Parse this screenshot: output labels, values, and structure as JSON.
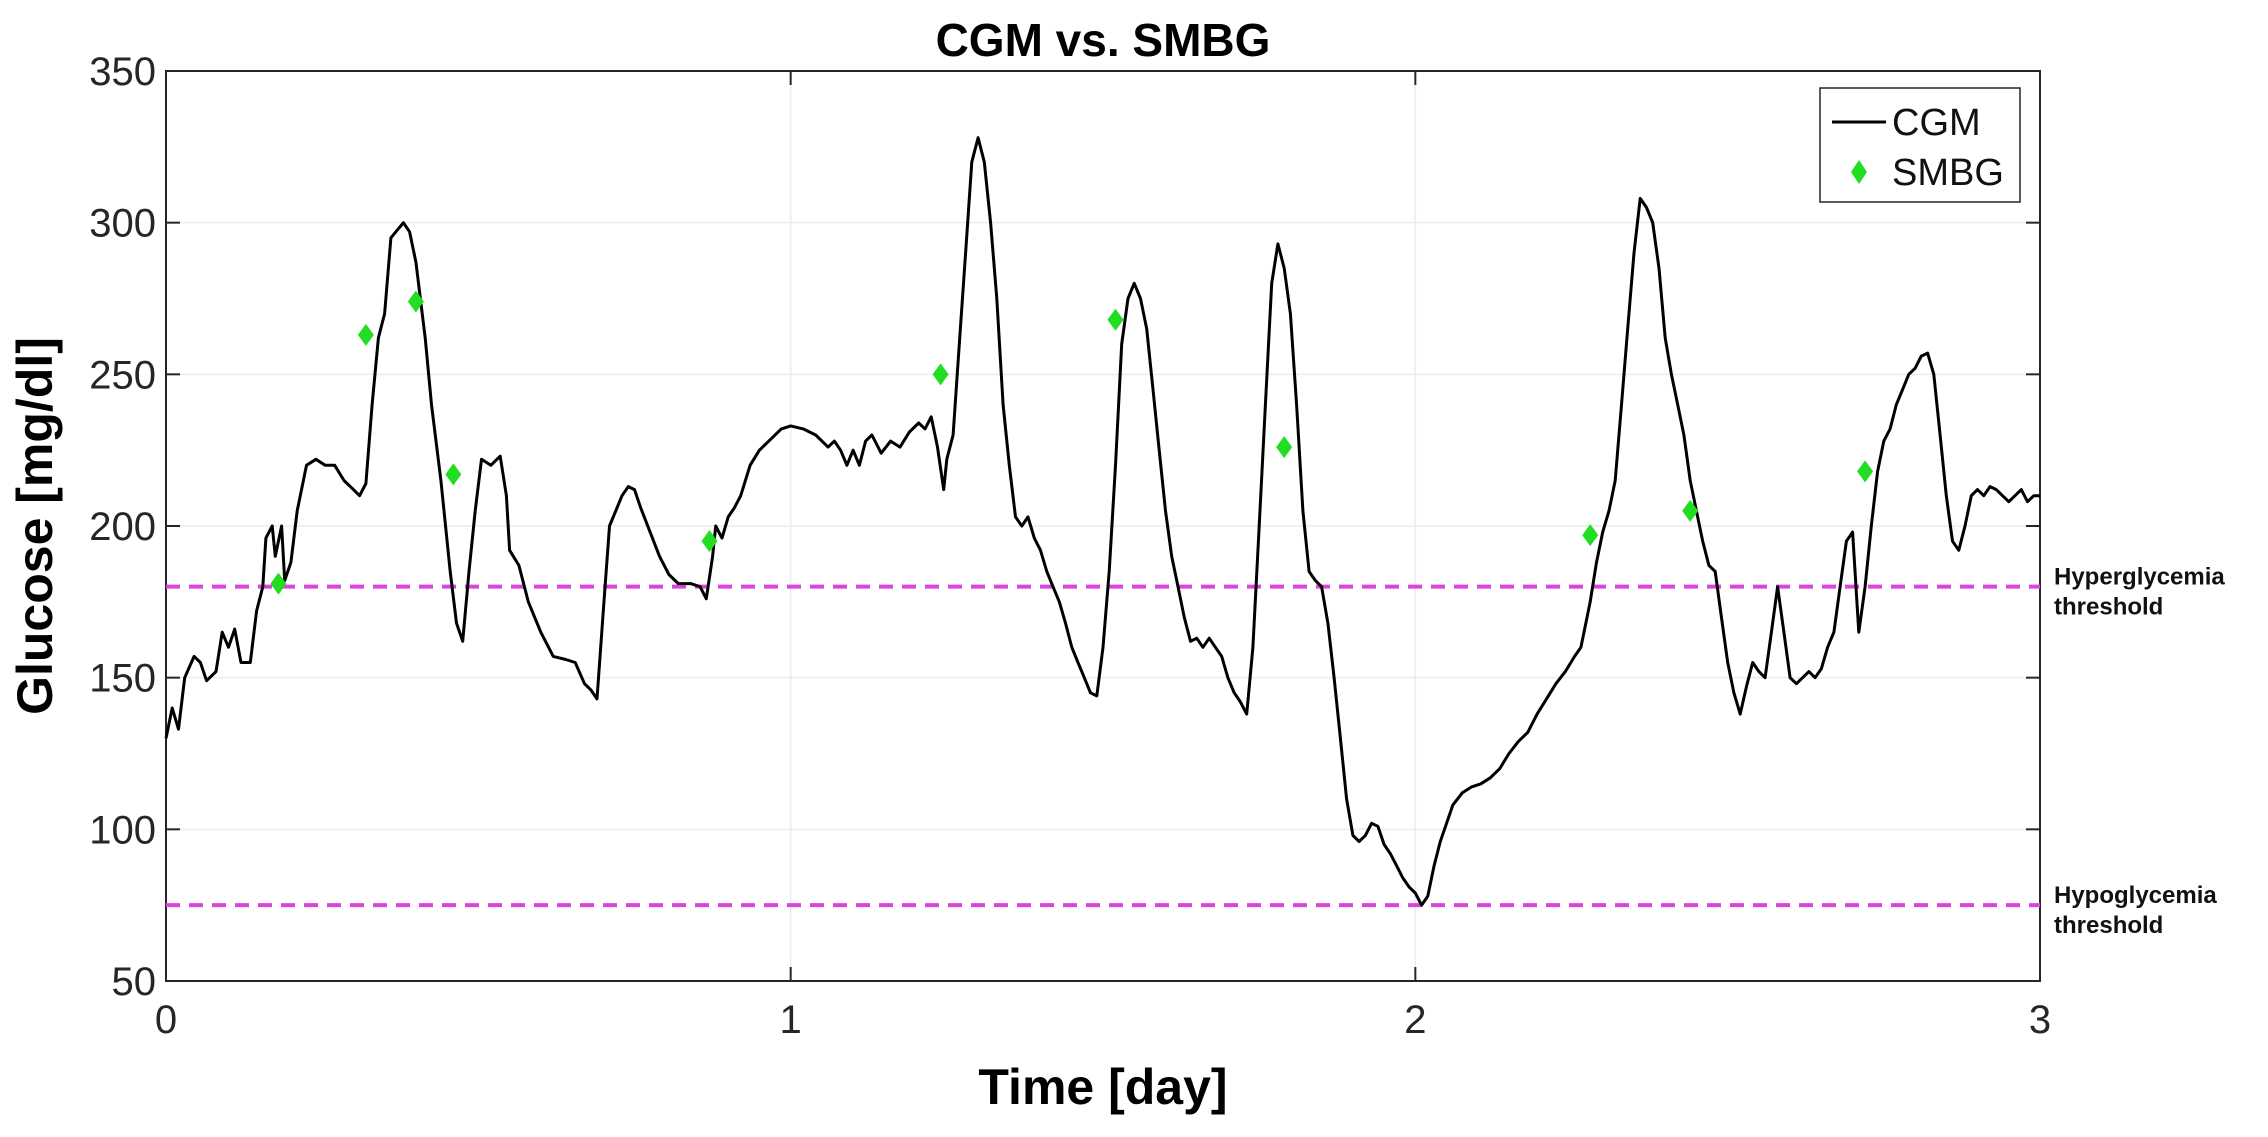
{
  "chart_data": {
    "type": "line",
    "title": "CGM vs. SMBG",
    "xlabel": "Time [day]",
    "ylabel": "Glucose [mg/dl]",
    "xlim": [
      0,
      3
    ],
    "ylim": [
      50,
      350
    ],
    "xticks": [
      0,
      1,
      2,
      3
    ],
    "yticks": [
      50,
      100,
      150,
      200,
      250,
      300,
      350
    ],
    "grid": true,
    "legend_position": "top-right",
    "series": [
      {
        "name": "CGM",
        "style": "line",
        "color": "#000000",
        "points": [
          [
            0.0,
            130
          ],
          [
            0.01,
            140
          ],
          [
            0.02,
            133
          ],
          [
            0.03,
            150
          ],
          [
            0.045,
            157
          ],
          [
            0.055,
            155
          ],
          [
            0.065,
            149
          ],
          [
            0.08,
            152
          ],
          [
            0.09,
            165
          ],
          [
            0.1,
            160
          ],
          [
            0.11,
            166
          ],
          [
            0.12,
            155
          ],
          [
            0.135,
            155
          ],
          [
            0.145,
            172
          ],
          [
            0.155,
            180
          ],
          [
            0.16,
            196
          ],
          [
            0.17,
            200
          ],
          [
            0.175,
            190
          ],
          [
            0.185,
            200
          ],
          [
            0.19,
            182
          ],
          [
            0.2,
            188
          ],
          [
            0.21,
            205
          ],
          [
            0.225,
            220
          ],
          [
            0.24,
            222
          ],
          [
            0.255,
            220
          ],
          [
            0.27,
            220
          ],
          [
            0.285,
            215
          ],
          [
            0.3,
            212
          ],
          [
            0.31,
            210
          ],
          [
            0.32,
            214
          ],
          [
            0.33,
            240
          ],
          [
            0.34,
            262
          ],
          [
            0.35,
            270
          ],
          [
            0.36,
            295
          ],
          [
            0.38,
            300
          ],
          [
            0.39,
            297
          ],
          [
            0.4,
            287
          ],
          [
            0.415,
            262
          ],
          [
            0.425,
            240
          ],
          [
            0.44,
            215
          ],
          [
            0.455,
            185
          ],
          [
            0.465,
            168
          ],
          [
            0.475,
            162
          ],
          [
            0.485,
            185
          ],
          [
            0.495,
            205
          ],
          [
            0.505,
            222
          ],
          [
            0.52,
            220
          ],
          [
            0.535,
            223
          ],
          [
            0.545,
            210
          ],
          [
            0.55,
            192
          ],
          [
            0.565,
            187
          ],
          [
            0.58,
            175
          ],
          [
            0.6,
            165
          ],
          [
            0.62,
            157
          ],
          [
            0.64,
            156
          ],
          [
            0.655,
            155
          ],
          [
            0.67,
            148
          ],
          [
            0.68,
            146
          ],
          [
            0.69,
            143
          ],
          [
            0.7,
            172
          ],
          [
            0.71,
            200
          ],
          [
            0.72,
            205
          ],
          [
            0.73,
            210
          ],
          [
            0.74,
            213
          ],
          [
            0.75,
            212
          ],
          [
            0.76,
            206
          ],
          [
            0.775,
            198
          ],
          [
            0.79,
            190
          ],
          [
            0.805,
            184
          ],
          [
            0.82,
            181
          ],
          [
            0.84,
            181
          ],
          [
            0.855,
            180
          ],
          [
            0.865,
            176
          ],
          [
            0.875,
            190
          ],
          [
            0.88,
            200
          ],
          [
            0.89,
            196
          ],
          [
            0.9,
            203
          ],
          [
            0.91,
            206
          ],
          [
            0.92,
            210
          ],
          [
            0.935,
            220
          ],
          [
            0.95,
            225
          ],
          [
            0.965,
            228
          ],
          [
            0.985,
            232
          ],
          [
            1.0,
            233
          ],
          [
            1.02,
            232
          ],
          [
            1.04,
            230
          ],
          [
            1.06,
            226
          ],
          [
            1.07,
            228
          ],
          [
            1.08,
            225
          ],
          [
            1.09,
            220
          ],
          [
            1.1,
            225
          ],
          [
            1.11,
            220
          ],
          [
            1.12,
            228
          ],
          [
            1.13,
            230
          ],
          [
            1.145,
            224
          ],
          [
            1.16,
            228
          ],
          [
            1.175,
            226
          ],
          [
            1.19,
            231
          ],
          [
            1.205,
            234
          ],
          [
            1.215,
            232
          ],
          [
            1.225,
            236
          ],
          [
            1.235,
            226
          ],
          [
            1.245,
            212
          ],
          [
            1.25,
            222
          ],
          [
            1.26,
            230
          ],
          [
            1.27,
            260
          ],
          [
            1.28,
            290
          ],
          [
            1.29,
            320
          ],
          [
            1.3,
            328
          ],
          [
            1.31,
            320
          ],
          [
            1.32,
            300
          ],
          [
            1.33,
            275
          ],
          [
            1.34,
            240
          ],
          [
            1.35,
            220
          ],
          [
            1.36,
            203
          ],
          [
            1.37,
            200
          ],
          [
            1.38,
            203
          ],
          [
            1.39,
            196
          ],
          [
            1.4,
            192
          ],
          [
            1.41,
            185
          ],
          [
            1.42,
            180
          ],
          [
            1.43,
            175
          ],
          [
            1.44,
            168
          ],
          [
            1.45,
            160
          ],
          [
            1.46,
            155
          ],
          [
            1.47,
            150
          ],
          [
            1.48,
            145
          ],
          [
            1.49,
            144
          ],
          [
            1.5,
            160
          ],
          [
            1.51,
            185
          ],
          [
            1.52,
            220
          ],
          [
            1.53,
            260
          ],
          [
            1.54,
            275
          ],
          [
            1.55,
            280
          ],
          [
            1.56,
            275
          ],
          [
            1.57,
            265
          ],
          [
            1.58,
            245
          ],
          [
            1.59,
            225
          ],
          [
            1.6,
            205
          ],
          [
            1.61,
            190
          ],
          [
            1.62,
            180
          ],
          [
            1.63,
            170
          ],
          [
            1.64,
            162
          ],
          [
            1.65,
            163
          ],
          [
            1.66,
            160
          ],
          [
            1.67,
            163
          ],
          [
            1.68,
            160
          ],
          [
            1.69,
            157
          ],
          [
            1.7,
            150
          ],
          [
            1.71,
            145
          ],
          [
            1.72,
            142
          ],
          [
            1.73,
            138
          ],
          [
            1.74,
            160
          ],
          [
            1.75,
            200
          ],
          [
            1.76,
            240
          ],
          [
            1.77,
            280
          ],
          [
            1.78,
            293
          ],
          [
            1.79,
            285
          ],
          [
            1.8,
            270
          ],
          [
            1.81,
            240
          ],
          [
            1.82,
            205
          ],
          [
            1.83,
            185
          ],
          [
            1.84,
            182
          ],
          [
            1.85,
            180
          ],
          [
            1.86,
            168
          ],
          [
            1.87,
            150
          ],
          [
            1.88,
            130
          ],
          [
            1.89,
            110
          ],
          [
            1.9,
            98
          ],
          [
            1.91,
            96
          ],
          [
            1.92,
            98
          ],
          [
            1.93,
            102
          ],
          [
            1.94,
            101
          ],
          [
            1.95,
            95
          ],
          [
            1.96,
            92
          ],
          [
            1.97,
            88
          ],
          [
            1.98,
            84
          ],
          [
            1.99,
            81
          ],
          [
            2.0,
            79
          ],
          [
            2.01,
            75
          ],
          [
            2.02,
            78
          ],
          [
            2.03,
            88
          ],
          [
            2.04,
            96
          ],
          [
            2.05,
            102
          ],
          [
            2.06,
            108
          ],
          [
            2.075,
            112
          ],
          [
            2.09,
            114
          ],
          [
            2.105,
            115
          ],
          [
            2.12,
            117
          ],
          [
            2.135,
            120
          ],
          [
            2.15,
            125
          ],
          [
            2.165,
            129
          ],
          [
            2.18,
            132
          ],
          [
            2.195,
            138
          ],
          [
            2.21,
            143
          ],
          [
            2.225,
            148
          ],
          [
            2.24,
            152
          ],
          [
            2.255,
            157
          ],
          [
            2.265,
            160
          ],
          [
            2.27,
            165
          ],
          [
            2.28,
            175
          ],
          [
            2.29,
            188
          ],
          [
            2.3,
            198
          ],
          [
            2.31,
            205
          ],
          [
            2.32,
            215
          ],
          [
            2.33,
            240
          ],
          [
            2.34,
            265
          ],
          [
            2.35,
            290
          ],
          [
            2.36,
            308
          ],
          [
            2.37,
            305
          ],
          [
            2.38,
            300
          ],
          [
            2.39,
            285
          ],
          [
            2.4,
            262
          ],
          [
            2.41,
            250
          ],
          [
            2.42,
            240
          ],
          [
            2.43,
            230
          ],
          [
            2.44,
            215
          ],
          [
            2.45,
            205
          ],
          [
            2.46,
            195
          ],
          [
            2.47,
            187
          ],
          [
            2.48,
            185
          ],
          [
            2.49,
            170
          ],
          [
            2.5,
            155
          ],
          [
            2.51,
            145
          ],
          [
            2.52,
            138
          ],
          [
            2.53,
            147
          ],
          [
            2.54,
            155
          ],
          [
            2.55,
            152
          ],
          [
            2.56,
            150
          ],
          [
            2.57,
            165
          ],
          [
            2.58,
            180
          ],
          [
            2.59,
            165
          ],
          [
            2.6,
            150
          ],
          [
            2.61,
            148
          ],
          [
            2.62,
            150
          ],
          [
            2.63,
            152
          ],
          [
            2.64,
            150
          ],
          [
            2.65,
            153
          ],
          [
            2.66,
            160
          ],
          [
            2.67,
            165
          ],
          [
            2.68,
            180
          ],
          [
            2.69,
            195
          ],
          [
            2.7,
            198
          ],
          [
            2.71,
            165
          ],
          [
            2.72,
            180
          ],
          [
            2.73,
            200
          ],
          [
            2.74,
            218
          ],
          [
            2.75,
            228
          ],
          [
            2.76,
            232
          ],
          [
            2.77,
            240
          ],
          [
            2.78,
            245
          ],
          [
            2.79,
            250
          ],
          [
            2.8,
            252
          ],
          [
            2.81,
            256
          ],
          [
            2.82,
            257
          ],
          [
            2.83,
            250
          ],
          [
            2.84,
            230
          ],
          [
            2.85,
            210
          ],
          [
            2.86,
            195
          ],
          [
            2.87,
            192
          ],
          [
            2.88,
            200
          ],
          [
            2.89,
            210
          ],
          [
            2.9,
            212
          ],
          [
            2.91,
            210
          ],
          [
            2.92,
            213
          ],
          [
            2.93,
            212
          ],
          [
            2.94,
            210
          ],
          [
            2.95,
            208
          ],
          [
            2.96,
            210
          ],
          [
            2.97,
            212
          ],
          [
            2.98,
            208
          ],
          [
            2.99,
            210
          ],
          [
            3.0,
            210
          ]
        ]
      },
      {
        "name": "SMBG",
        "style": "marker",
        "color": "#22dd22",
        "points": [
          [
            0.18,
            181
          ],
          [
            0.32,
            263
          ],
          [
            0.4,
            274
          ],
          [
            0.46,
            217
          ],
          [
            0.87,
            195
          ],
          [
            1.24,
            250
          ],
          [
            1.52,
            268
          ],
          [
            1.79,
            226
          ],
          [
            2.28,
            197
          ],
          [
            2.44,
            205
          ],
          [
            2.72,
            218
          ]
        ]
      }
    ],
    "reference_lines": [
      {
        "name": "Hyperglycemia threshold",
        "line1": "Hyperglycemia",
        "line2": "threshold",
        "y": 180,
        "color": "#dd44dd",
        "style": "dashed"
      },
      {
        "name": "Hypoglycemia threshold",
        "line1": "Hypoglycemia",
        "line2": "threshold",
        "y": 75,
        "color": "#dd44dd",
        "style": "dashed"
      }
    ],
    "legend": [
      {
        "label": "CGM",
        "symbol": "line"
      },
      {
        "label": "SMBG",
        "symbol": "diamond"
      }
    ]
  }
}
